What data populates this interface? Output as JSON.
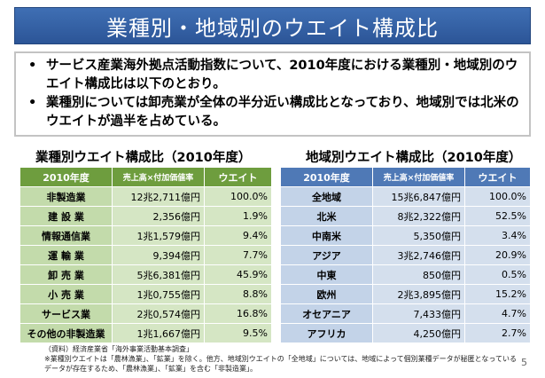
{
  "title": "業種別・地域別のウエイト構成比",
  "bullets": [
    "サービス産業海外拠点活動指数について、2010年度における業種別・地域別のウエイト構成比は以下のとおり。",
    "業種別については卸売業が全体の半分近い構成比となっており、地域別では北米のウエイトが過半を占めている。"
  ],
  "left_table": {
    "caption": "業種別ウエイト構成比（2010年度）",
    "headers": [
      "2010年度",
      "売上高×付加価値率",
      "ウエイト"
    ],
    "rows": [
      [
        "非製造業",
        "12兆2,711億円",
        "100.0%"
      ],
      [
        "建 設 業",
        "2,356億円",
        "1.9%"
      ],
      [
        "情報通信業",
        "1兆1,579億円",
        "9.4%"
      ],
      [
        "運 輸 業",
        "9,394億円",
        "7.7%"
      ],
      [
        "卸 売 業",
        "5兆6,381億円",
        "45.9%"
      ],
      [
        "小 売 業",
        "1兆0,755億円",
        "8.8%"
      ],
      [
        "サービス業",
        "2兆0,574億円",
        "16.8%"
      ],
      [
        "その他の非製造業",
        "1兆1,667億円",
        "9.5%"
      ]
    ]
  },
  "right_table": {
    "caption": "地域別ウエイト構成比（2010年度）",
    "headers": [
      "2010年度",
      "売上高×付加価値率",
      "ウエイト"
    ],
    "rows": [
      [
        "全地域",
        "15兆6,847億円",
        "100.0%"
      ],
      [
        "北米",
        "8兆2,322億円",
        "52.5%"
      ],
      [
        "中南米",
        "5,350億円",
        "3.4%"
      ],
      [
        "アジア",
        "3兆2,746億円",
        "20.9%"
      ],
      [
        "中東",
        "850億円",
        "0.5%"
      ],
      [
        "欧州",
        "2兆3,895億円",
        "15.2%"
      ],
      [
        "オセアニア",
        "7,433億円",
        "4.7%"
      ],
      [
        "アフリカ",
        "4,250億円",
        "2.7%"
      ]
    ]
  },
  "notes": [
    "（資料）経済産業省「海外事業活動基本調査」",
    "※業種別ウエイトは「農林漁業」、「鉱業」を除く。他方、地域別ウエイトの「全地域」については、地域によって個別業種データが秘匿となっているデータが存在するため、「農林漁業」、「鉱業」を含む「非製造業」。"
  ],
  "page_number": "5"
}
